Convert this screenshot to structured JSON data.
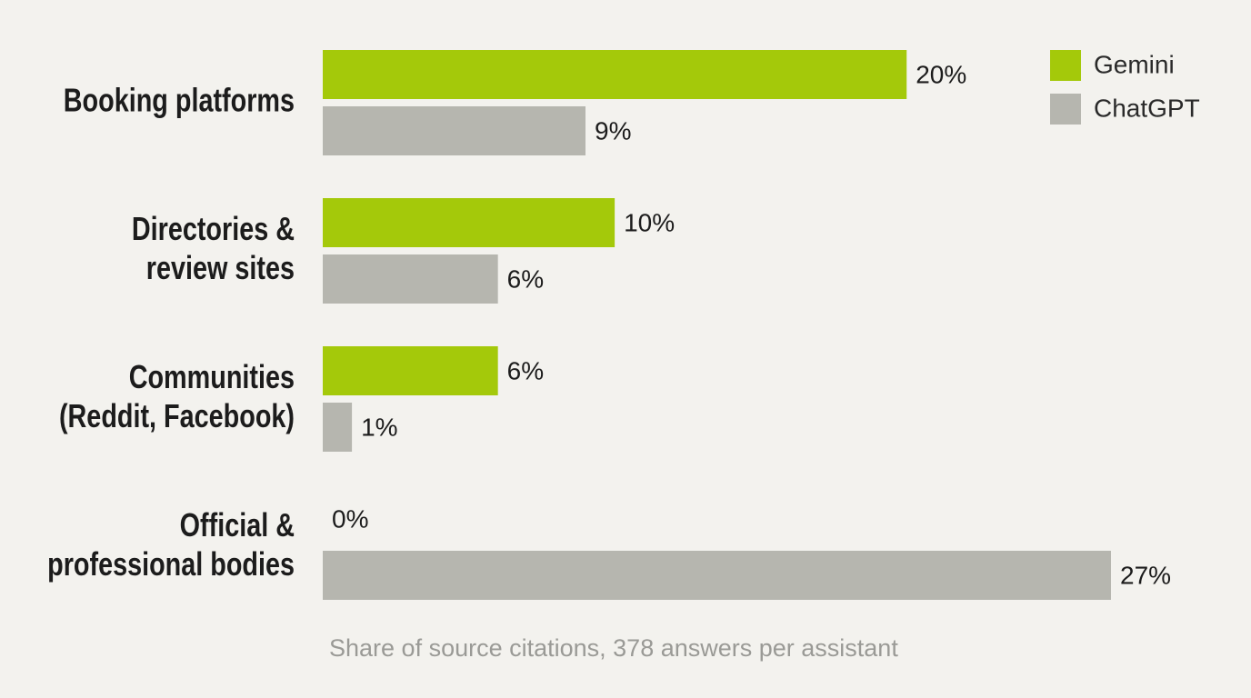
{
  "chart_data": {
    "type": "hbar",
    "categories": [
      [
        "Booking platforms"
      ],
      [
        "Directories &",
        "review sites"
      ],
      [
        "Communities",
        "(Reddit, Facebook)"
      ],
      [
        "Official &",
        "professional bodies"
      ]
    ],
    "series": [
      {
        "name": "Gemini",
        "color": "#a4c90a",
        "values": [
          20,
          10,
          6,
          0
        ],
        "value_labels": [
          "20%",
          "10%",
          "6%",
          "0%"
        ]
      },
      {
        "name": "ChatGPT",
        "color": "#b6b6af",
        "values": [
          9,
          6,
          1,
          27
        ],
        "value_labels": [
          "9%",
          "6%",
          "1%",
          "27%"
        ]
      }
    ],
    "legend": "top-right",
    "note": "Share of source citations, 378 answers per assistant"
  }
}
